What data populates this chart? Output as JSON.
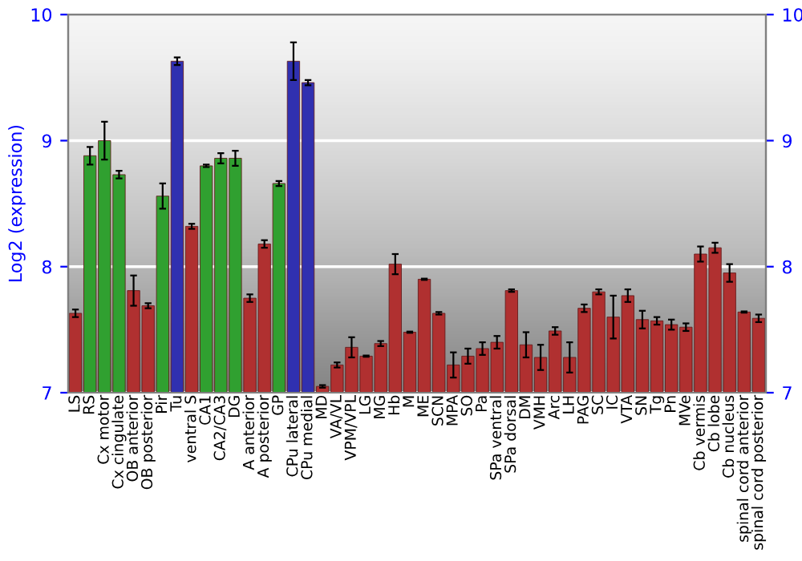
{
  "chart_data": {
    "type": "bar",
    "ylabel": "Log2 (expression)",
    "categories": [
      "LS",
      "RS",
      "Cx motor",
      "Cx cingulate",
      "OB anterior",
      "OB posterior",
      "Pir",
      "Tu",
      "ventral S",
      "CA1",
      "CA2/CA3",
      "DG",
      "A anterior",
      "A posterior",
      "GP",
      "CPu lateral",
      "CPu medial",
      "MD",
      "VA/VL",
      "VPM/VPL",
      "LG",
      "MG",
      "Hb",
      "M",
      "ME",
      "SCN",
      "MPA",
      "SO",
      "Pa",
      "SPa ventral",
      "SPa dorsal",
      "DM",
      "VMH",
      "Arc",
      "LH",
      "PAG",
      "SC",
      "IC",
      "VTA",
      "SN",
      "Tg",
      "Pn",
      "MVe",
      "Cb vermis",
      "Cb lobe",
      "Cb nucleus",
      "spinal cord anterior",
      "spinal cord posterior"
    ],
    "values": [
      7.63,
      8.88,
      9.0,
      8.73,
      7.81,
      7.69,
      8.56,
      9.63,
      8.32,
      8.8,
      8.86,
      8.86,
      7.75,
      8.18,
      8.66,
      9.63,
      9.46,
      7.05,
      7.22,
      7.36,
      7.29,
      7.39,
      8.02,
      7.48,
      7.9,
      7.63,
      7.22,
      7.29,
      7.35,
      7.4,
      7.81,
      7.38,
      7.28,
      7.49,
      7.28,
      7.67,
      7.8,
      7.6,
      7.77,
      7.58,
      7.57,
      7.54,
      7.52,
      8.1,
      8.15,
      7.95,
      7.64,
      7.59
    ],
    "errors": [
      0.03,
      0.07,
      0.15,
      0.03,
      0.12,
      0.02,
      0.1,
      0.03,
      0.02,
      0.01,
      0.04,
      0.06,
      0.03,
      0.03,
      0.02,
      0.15,
      0.02,
      0.01,
      0.02,
      0.08,
      0.005,
      0.02,
      0.08,
      0.005,
      0.005,
      0.01,
      0.1,
      0.06,
      0.05,
      0.05,
      0.01,
      0.1,
      0.1,
      0.03,
      0.12,
      0.03,
      0.02,
      0.17,
      0.05,
      0.07,
      0.03,
      0.04,
      0.03,
      0.06,
      0.04,
      0.07,
      0.005,
      0.03
    ],
    "colors": [
      "#b03030",
      "#30a030",
      "#30a030",
      "#30a030",
      "#b03030",
      "#b03030",
      "#30a030",
      "#3030b0",
      "#b03030",
      "#30a030",
      "#30a030",
      "#30a030",
      "#b03030",
      "#b03030",
      "#30a030",
      "#3030b0",
      "#3030b0",
      "#b03030",
      "#b03030",
      "#b03030",
      "#b03030",
      "#b03030",
      "#b03030",
      "#b03030",
      "#b03030",
      "#b03030",
      "#b03030",
      "#b03030",
      "#b03030",
      "#b03030",
      "#b03030",
      "#b03030",
      "#b03030",
      "#b03030",
      "#b03030",
      "#b03030",
      "#b03030",
      "#b03030",
      "#b03030",
      "#b03030",
      "#b03030",
      "#b03030",
      "#b03030",
      "#b03030",
      "#b03030",
      "#b03030",
      "#b03030",
      "#b03030"
    ],
    "ylim": [
      7,
      10
    ],
    "yticks": [
      7,
      8,
      9,
      10
    ],
    "y2lim": [
      7,
      10
    ],
    "y2ticks": [
      7,
      8,
      9,
      10
    ],
    "grid": "y"
  }
}
